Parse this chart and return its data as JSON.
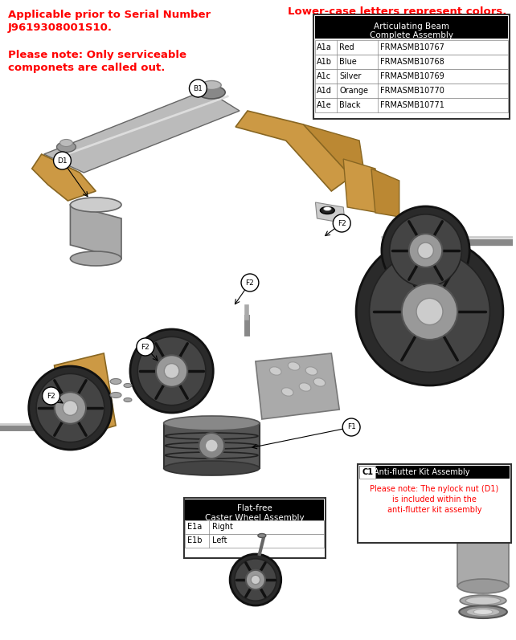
{
  "title_left_line1": "Applicable prior to Serial Number",
  "title_left_line2": "J9619308001S10.",
  "note_line1": "Please note: Only serviceable",
  "note_line2": "componets are called out.",
  "top_right_text": "Lower-case letters represent colors.",
  "table1_header1": "Articulating Beam",
  "table1_header2": "Complete Assembly",
  "table1_rows": [
    [
      "A1a",
      "Red",
      "FRMASMB10767"
    ],
    [
      "A1b",
      "Blue",
      "FRMASMB10768"
    ],
    [
      "A1c",
      "Silver",
      "FRMASMB10769"
    ],
    [
      "A1d",
      "Orange",
      "FRMASMB10770"
    ],
    [
      "A1e",
      "Black",
      "FRMASMB10771"
    ]
  ],
  "table2_header1": "Flat-free",
  "table2_header2": "Caster Wheel Assembly",
  "table2_rows": [
    [
      "E1a",
      "Right"
    ],
    [
      "E1b",
      "Left"
    ]
  ],
  "table3_label": "C1",
  "table3_header": "Anti-flutter Kit Assembly",
  "table3_note_line1": "Please note: The nylock nut (D1)",
  "table3_note_line2": "is included within the",
  "table3_note_line3": "anti-flutter kit assembly",
  "red_color": "#FF0000",
  "black_color": "#000000",
  "bg_color": "#FFFFFF",
  "diagram_line_color": "#555555"
}
